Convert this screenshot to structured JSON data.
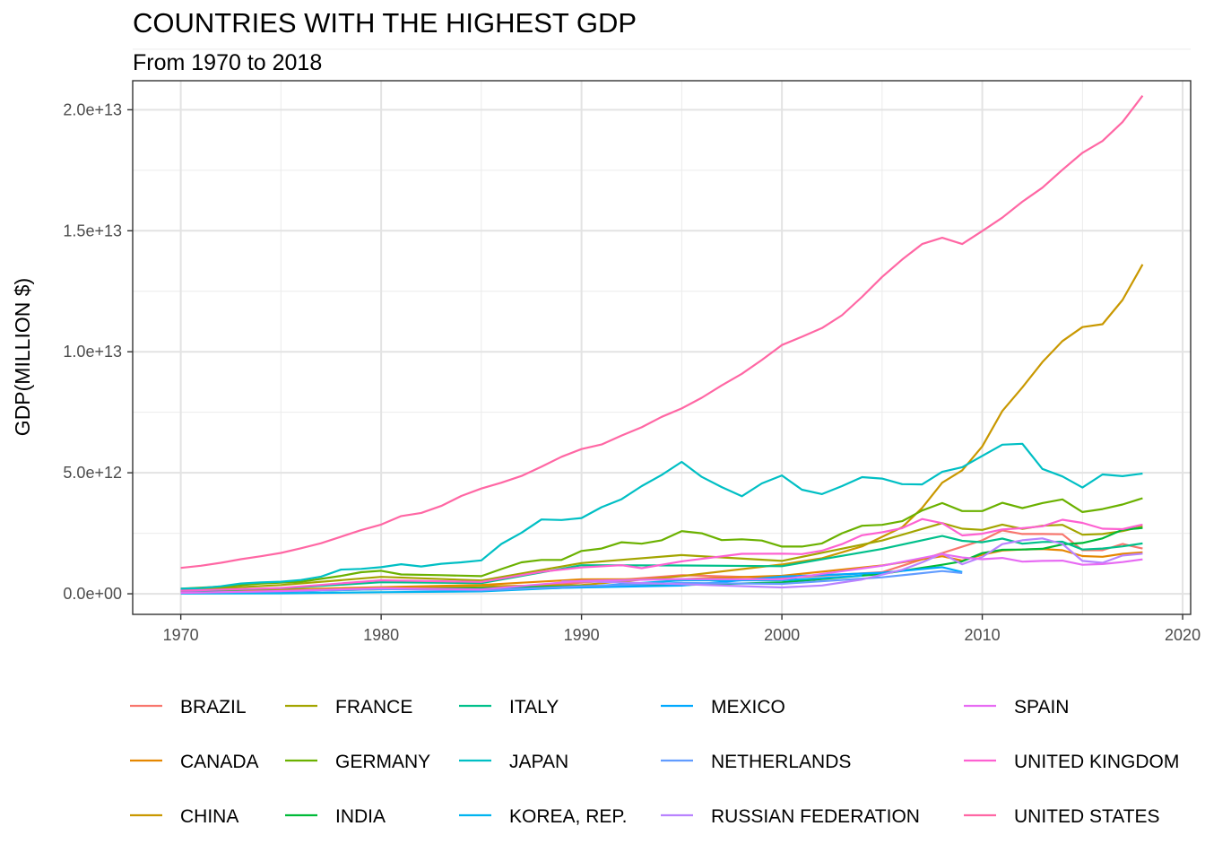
{
  "chart_data": {
    "type": "line",
    "title": "COUNTRIES WITH THE HIGHEST GDP",
    "subtitle": "From 1970 to 2018",
    "xlabel": "",
    "ylabel": "GDP(MILLION $)",
    "xlim": [
      1967.6,
      2020.4
    ],
    "ylim": [
      -850000000000.0,
      21200000000000.0
    ],
    "x_ticks": [
      1970,
      1980,
      1990,
      2000,
      2010,
      2020
    ],
    "x_tick_labels": [
      "1970",
      "1980",
      "1990",
      "2000",
      "2010",
      "2020"
    ],
    "y_ticks": [
      0,
      5000000000000.0,
      10000000000000.0,
      15000000000000.0,
      20000000000000.0
    ],
    "y_tick_labels": [
      "0.0e+00",
      "5.0e+12",
      "1.0e+13",
      "1.5e+13",
      "2.0e+13"
    ],
    "grid": true,
    "legend_position": "bottom",
    "series": [
      {
        "name": "BRAZIL",
        "color": "#F8766D",
        "x": [
          1970,
          1975,
          1980,
          1985,
          1990,
          1995,
          2000,
          2005,
          2010,
          2011,
          2012,
          2013,
          2014,
          2015,
          2016,
          2017,
          2018
        ],
        "y": [
          42000000000.0,
          120000000000.0,
          235000000000.0,
          220000000000.0,
          460000000000.0,
          770000000000.0,
          650000000000.0,
          890000000000.0,
          2210000000000.0,
          2620000000000.0,
          2470000000000.0,
          2470000000000.0,
          2460000000000.0,
          1800000000000.0,
          1800000000000.0,
          2060000000000.0,
          1870000000000.0
        ]
      },
      {
        "name": "CANADA",
        "color": "#E58700",
        "x": [
          1970,
          1975,
          1980,
          1985,
          1990,
          1995,
          2000,
          2005,
          2008,
          2009,
          2010,
          2011,
          2012,
          2013,
          2014,
          2015,
          2016,
          2017,
          2018
        ],
        "y": [
          87000000000.0,
          174000000000.0,
          274000000000.0,
          365000000000.0,
          594000000000.0,
          605000000000.0,
          742000000000.0,
          1170000000000.0,
          1550000000000.0,
          1370000000000.0,
          1610000000000.0,
          1790000000000.0,
          1830000000000.0,
          1850000000000.0,
          1800000000000.0,
          1560000000000.0,
          1530000000000.0,
          1650000000000.0,
          1710000000000.0
        ]
      },
      {
        "name": "CHINA",
        "color": "#C99800",
        "x": [
          1970,
          1975,
          1980,
          1985,
          1990,
          1995,
          2000,
          2002,
          2004,
          2006,
          2007,
          2008,
          2009,
          2010,
          2011,
          2012,
          2013,
          2014,
          2015,
          2016,
          2017,
          2018
        ],
        "y": [
          92000000000.0,
          164000000000.0,
          191000000000.0,
          309000000000.0,
          361000000000.0,
          734000000000.0,
          1210000000000.0,
          1470000000000.0,
          1960000000000.0,
          2750000000000.0,
          3550000000000.0,
          4590000000000.0,
          5100000000000.0,
          6090000000000.0,
          7550000000000.0,
          8530000000000.0,
          9570000000000.0,
          10440000000000.0,
          11020000000000.0,
          11140000000000.0,
          12140000000000.0,
          13610000000000.0
        ]
      },
      {
        "name": "FRANCE",
        "color": "#A3A500",
        "x": [
          1970,
          1975,
          1980,
          1985,
          1990,
          1995,
          2000,
          2005,
          2008,
          2009,
          2010,
          2011,
          2012,
          2013,
          2014,
          2015,
          2016,
          2017,
          2018
        ],
        "y": [
          148000000000.0,
          360000000000.0,
          700000000000.0,
          550000000000.0,
          1270000000000.0,
          1600000000000.0,
          1360000000000.0,
          2200000000000.0,
          2920000000000.0,
          2690000000000.0,
          2640000000000.0,
          2860000000000.0,
          2680000000000.0,
          2810000000000.0,
          2850000000000.0,
          2440000000000.0,
          2470000000000.0,
          2590000000000.0,
          2780000000000.0
        ]
      },
      {
        "name": "GERMANY",
        "color": "#6BB100",
        "x": [
          1970,
          1972,
          1974,
          1976,
          1978,
          1979,
          1980,
          1981,
          1983,
          1985,
          1986,
          1987,
          1988,
          1989,
          1990,
          1991,
          1992,
          1993,
          1994,
          1995,
          1996,
          1997,
          1998,
          1999,
          2000,
          2001,
          2002,
          2003,
          2004,
          2005,
          2006,
          2007,
          2008,
          2009,
          2010,
          2011,
          2012,
          2013,
          2014,
          2015,
          2016,
          2017,
          2018
        ],
        "y": [
          215000000000.0,
          295000000000.0,
          420000000000.0,
          500000000000.0,
          740000000000.0,
          890000000000.0,
          950000000000.0,
          800000000000.0,
          770000000000.0,
          730000000000.0,
          1020000000000.0,
          1300000000000.0,
          1400000000000.0,
          1400000000000.0,
          1770000000000.0,
          1870000000000.0,
          2130000000000.0,
          2070000000000.0,
          2210000000000.0,
          2590000000000.0,
          2500000000000.0,
          2220000000000.0,
          2250000000000.0,
          2200000000000.0,
          1950000000000.0,
          1950000000000.0,
          2080000000000.0,
          2500000000000.0,
          2810000000000.0,
          2850000000000.0,
          3000000000000.0,
          3440000000000.0,
          3750000000000.0,
          3420000000000.0,
          3420000000000.0,
          3760000000000.0,
          3540000000000.0,
          3750000000000.0,
          3900000000000.0,
          3380000000000.0,
          3500000000000.0,
          3690000000000.0,
          3950000000000.0
        ]
      },
      {
        "name": "INDIA",
        "color": "#00BA38",
        "x": [
          1970,
          1975,
          1980,
          1985,
          1990,
          1995,
          2000,
          2005,
          2008,
          2009,
          2010,
          2011,
          2012,
          2013,
          2014,
          2015,
          2016,
          2017,
          2018
        ],
        "y": [
          62000000000.0,
          98000000000.0,
          186000000000.0,
          233000000000.0,
          320000000000.0,
          360000000000.0,
          468000000000.0,
          820000000000.0,
          1200000000000.0,
          1340000000000.0,
          1680000000000.0,
          1820000000000.0,
          1830000000000.0,
          1860000000000.0,
          2040000000000.0,
          2100000000000.0,
          2290000000000.0,
          2650000000000.0,
          2720000000000.0
        ]
      },
      {
        "name": "ITALY",
        "color": "#00C08B",
        "x": [
          1970,
          1975,
          1980,
          1985,
          1990,
          1995,
          2000,
          2005,
          2008,
          2009,
          2010,
          2011,
          2012,
          2013,
          2014,
          2015,
          2016,
          2017,
          2018
        ],
        "y": [
          113000000000.0,
          227000000000.0,
          475000000000.0,
          440000000000.0,
          1180000000000.0,
          1170000000000.0,
          1140000000000.0,
          1850000000000.0,
          2390000000000.0,
          2190000000000.0,
          2130000000000.0,
          2280000000000.0,
          2070000000000.0,
          2140000000000.0,
          2150000000000.0,
          1830000000000.0,
          1870000000000.0,
          1960000000000.0,
          2080000000000.0
        ]
      },
      {
        "name": "JAPAN",
        "color": "#00BFC4",
        "x": [
          1970,
          1971,
          1972,
          1973,
          1974,
          1975,
          1976,
          1977,
          1978,
          1979,
          1980,
          1981,
          1982,
          1983,
          1984,
          1985,
          1986,
          1987,
          1988,
          1989,
          1990,
          1991,
          1992,
          1993,
          1994,
          1995,
          1996,
          1997,
          1998,
          1999,
          2000,
          2001,
          2002,
          2003,
          2004,
          2005,
          2006,
          2007,
          2008,
          2009,
          2010,
          2011,
          2012,
          2013,
          2014,
          2015,
          2016,
          2017,
          2018
        ],
        "y": [
          210000000000.0,
          235000000000.0,
          310000000000.0,
          425000000000.0,
          470000000000.0,
          500000000000.0,
          570000000000.0,
          710000000000.0,
          1000000000000.0,
          1030000000000.0,
          1100000000000.0,
          1220000000000.0,
          1130000000000.0,
          1240000000000.0,
          1300000000000.0,
          1380000000000.0,
          2060000000000.0,
          2520000000000.0,
          3070000000000.0,
          3050000000000.0,
          3130000000000.0,
          3580000000000.0,
          3910000000000.0,
          4450000000000.0,
          4910000000000.0,
          5450000000000.0,
          4830000000000.0,
          4410000000000.0,
          4030000000000.0,
          4560000000000.0,
          4890000000000.0,
          4300000000000.0,
          4120000000000.0,
          4450000000000.0,
          4820000000000.0,
          4760000000000.0,
          4530000000000.0,
          4520000000000.0,
          5040000000000.0,
          5230000000000.0,
          5700000000000.0,
          6160000000000.0,
          6200000000000.0,
          5160000000000.0,
          4850000000000.0,
          4390000000000.0,
          4930000000000.0,
          4860000000000.0,
          4970000000000.0
        ]
      },
      {
        "name": "KOREA, REP.",
        "color": "#00B4F0",
        "x": [
          1970,
          1975,
          1980,
          1985,
          1990,
          1995,
          2000,
          2003,
          2004
        ],
        "y": [
          9000000000.0,
          22000000000.0,
          65000000000.0,
          100000000000.0,
          280000000000.0,
          560000000000.0,
          560000000000.0,
          700000000000.0,
          750000000000.0
        ]
      },
      {
        "name": "MEXICO",
        "color": "#00A9FF",
        "x": [
          1970,
          1975,
          1980,
          1985,
          1990,
          1995,
          2000,
          2005,
          2008,
          2009
        ],
        "y": [
          35000000000.0,
          88000000000.0,
          205000000000.0,
          185000000000.0,
          260000000000.0,
          340000000000.0,
          710000000000.0,
          870000000000.0,
          1100000000000.0,
          900000000000.0
        ]
      },
      {
        "name": "NETHERLANDS",
        "color": "#619CFF",
        "x": [
          1970,
          1975,
          1980,
          1985,
          1990,
          1995,
          2000,
          2005,
          2008,
          2009
        ],
        "y": [
          39000000000.0,
          97000000000.0,
          193000000000.0,
          138000000000.0,
          310000000000.0,
          450000000000.0,
          410000000000.0,
          680000000000.0,
          940000000000.0,
          860000000000.0
        ]
      },
      {
        "name": "RUSSIAN FEDERATION",
        "color": "#B983FF",
        "x": [
          1989,
          1990,
          1995,
          2000,
          2002,
          2004,
          2006,
          2007,
          2008,
          2009,
          2010,
          2011,
          2012,
          2013,
          2014,
          2015,
          2016,
          2017,
          2018
        ],
        "y": [
          506000000000.0,
          517000000000.0,
          396000000000.0,
          260000000000.0,
          345000000000.0,
          591000000000.0,
          990000000000.0,
          1300000000000.0,
          1660000000000.0,
          1220000000000.0,
          1520000000000.0,
          2050000000000.0,
          2210000000000.0,
          2290000000000.0,
          2060000000000.0,
          1360000000000.0,
          1280000000000.0,
          1580000000000.0,
          1660000000000.0
        ]
      },
      {
        "name": "SPAIN",
        "color": "#E76BF3",
        "x": [
          1970,
          1975,
          1980,
          1985,
          1990,
          1995,
          2000,
          2005,
          2008,
          2009,
          2010,
          2011,
          2012,
          2013,
          2014,
          2015,
          2016,
          2017,
          2018
        ],
        "y": [
          41000000000.0,
          112000000000.0,
          232000000000.0,
          180000000000.0,
          535000000000.0,
          610000000000.0,
          595000000000.0,
          1160000000000.0,
          1640000000000.0,
          1500000000000.0,
          1430000000000.0,
          1480000000000.0,
          1330000000000.0,
          1360000000000.0,
          1370000000000.0,
          1200000000000.0,
          1230000000000.0,
          1310000000000.0,
          1420000000000.0
        ]
      },
      {
        "name": "UNITED KINGDOM",
        "color": "#FD61D1",
        "x": [
          1970,
          1975,
          1980,
          1985,
          1988,
          1990,
          1992,
          1993,
          1995,
          1998,
          2000,
          2001,
          2002,
          2003,
          2004,
          2005,
          2006,
          2007,
          2008,
          2009,
          2010,
          2011,
          2012,
          2013,
          2014,
          2015,
          2016,
          2017,
          2018
        ],
        "y": [
          130000000000.0,
          240000000000.0,
          560000000000.0,
          490000000000.0,
          910000000000.0,
          1090000000000.0,
          1180000000000.0,
          1060000000000.0,
          1340000000000.0,
          1650000000000.0,
          1660000000000.0,
          1640000000000.0,
          1780000000000.0,
          2050000000000.0,
          2420000000000.0,
          2540000000000.0,
          2710000000000.0,
          3090000000000.0,
          2920000000000.0,
          2410000000000.0,
          2480000000000.0,
          2660000000000.0,
          2710000000000.0,
          2790000000000.0,
          3060000000000.0,
          2930000000000.0,
          2690000000000.0,
          2670000000000.0,
          2860000000000.0
        ]
      },
      {
        "name": "UNITED STATES",
        "color": "#FF67A4",
        "x": [
          1970,
          1971,
          1972,
          1973,
          1974,
          1975,
          1976,
          1977,
          1978,
          1979,
          1980,
          1981,
          1982,
          1983,
          1984,
          1985,
          1986,
          1987,
          1988,
          1989,
          1990,
          1991,
          1992,
          1993,
          1994,
          1995,
          1996,
          1997,
          1998,
          1999,
          2000,
          2001,
          2002,
          2003,
          2004,
          2005,
          2006,
          2007,
          2008,
          2009,
          2010,
          2011,
          2012,
          2013,
          2014,
          2015,
          2016,
          2017,
          2018
        ],
        "y": [
          1070000000000.0,
          1160000000000.0,
          1280000000000.0,
          1430000000000.0,
          1550000000000.0,
          1690000000000.0,
          1880000000000.0,
          2090000000000.0,
          2360000000000.0,
          2630000000000.0,
          2860000000000.0,
          3210000000000.0,
          3340000000000.0,
          3630000000000.0,
          4040000000000.0,
          4350000000000.0,
          4590000000000.0,
          4870000000000.0,
          5250000000000.0,
          5660000000000.0,
          5980000000000.0,
          6170000000000.0,
          6540000000000.0,
          6880000000000.0,
          7310000000000.0,
          7660000000000.0,
          8100000000000.0,
          8610000000000.0,
          9090000000000.0,
          9660000000000.0,
          10280000000000.0,
          10620000000000.0,
          10980000000000.0,
          11510000000000.0,
          12270000000000.0,
          13090000000000.0,
          13810000000000.0,
          14450000000000.0,
          14710000000000.0,
          14450000000000.0,
          14990000000000.0,
          15540000000000.0,
          16200000000000.0,
          16780000000000.0,
          17520000000000.0,
          18220000000000.0,
          18710000000000.0,
          19490000000000.0,
          20580000000000.0
        ]
      }
    ]
  }
}
